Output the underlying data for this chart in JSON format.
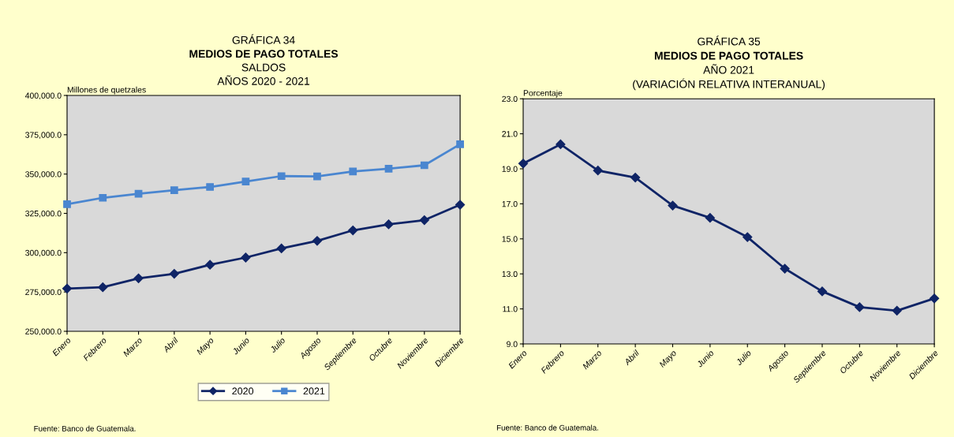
{
  "chart_data": [
    {
      "type": "line",
      "annotations": [
        "GRÁFICA 34",
        "Fuente: Banco de Guatemala."
      ],
      "title": "MEDIOS DE PAGO TOTALES",
      "subtitle": "SALDOS\nAÑOS 2020 - 2021",
      "ylabel": "Millones de quetzales",
      "categories": [
        "Enero",
        "Febrero",
        "Marzo",
        "Abril",
        "Mayo",
        "Junio",
        "Julio",
        "Agosto",
        "Septiembre",
        "Octubre",
        "Noviembre",
        "Diciembre"
      ],
      "series": [
        {
          "name": "2020",
          "color": "#0f2466",
          "marker": "diamond",
          "values": [
            277200,
            278000,
            283700,
            286600,
            292300,
            296900,
            302700,
            307500,
            314200,
            318000,
            320700,
            330500
          ]
        },
        {
          "name": "2021",
          "color": "#4a86d0",
          "marker": "square",
          "values": [
            330800,
            334900,
            337500,
            339700,
            341800,
            345200,
            348700,
            348500,
            351700,
            353400,
            355600,
            369000
          ]
        }
      ],
      "ylim": [
        250000,
        400000
      ],
      "yticks": [
        {
          "value": 250000,
          "label": "250,000.0"
        },
        {
          "value": 275000,
          "label": "275,000.0"
        },
        {
          "value": 300000,
          "label": "300,000.0"
        },
        {
          "value": 325000,
          "label": "325,000.0"
        },
        {
          "value": 350000,
          "label": "350,000.0"
        },
        {
          "value": 375000,
          "label": "375,000.0"
        },
        {
          "value": 400000,
          "label": "400,000.0"
        }
      ],
      "grid": false,
      "legend": "bottom"
    },
    {
      "type": "line",
      "annotations": [
        "GRÁFICA 35",
        "Fuente: Banco de Guatemala."
      ],
      "title": "MEDIOS DE PAGO TOTALES",
      "subtitle": "AÑO 2021\n(VARIACIÓN RELATIVA INTERANUAL)",
      "ylabel": "Porcentaje",
      "categories": [
        "Enero",
        "Febrero",
        "Marzo",
        "Abril",
        "Mayo",
        "Junio",
        "Julio",
        "Agosto",
        "Septiembre",
        "Octubre",
        "Noviembre",
        "Diciembre"
      ],
      "series": [
        {
          "color": "#0f2466",
          "marker": "diamond",
          "values": [
            19.3,
            20.4,
            18.9,
            18.5,
            16.9,
            16.2,
            15.1,
            13.3,
            12.0,
            11.1,
            10.9,
            11.6
          ]
        }
      ],
      "ylim": [
        9,
        23
      ],
      "yticks": [
        {
          "value": 9,
          "label": "9.0"
        },
        {
          "value": 11,
          "label": "11.0"
        },
        {
          "value": 13,
          "label": "13.0"
        },
        {
          "value": 15,
          "label": "15.0"
        },
        {
          "value": 17,
          "label": "17.0"
        },
        {
          "value": 19,
          "label": "19.0"
        },
        {
          "value": 21,
          "label": "21.0"
        },
        {
          "value": 23,
          "label": "23.0"
        }
      ],
      "grid": false,
      "legend": false
    }
  ]
}
